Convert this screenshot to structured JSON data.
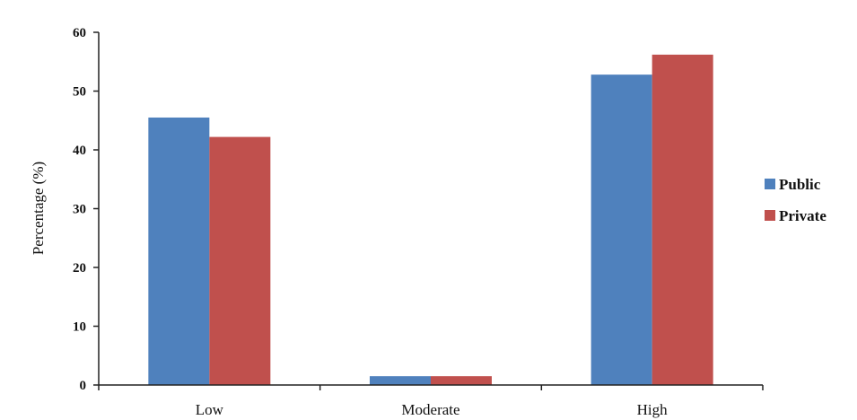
{
  "chart_data": {
    "type": "bar",
    "title": "",
    "xlabel": "",
    "ylabel": "Percentage (%)",
    "categories": [
      "Low",
      "Moderate",
      "High"
    ],
    "series": [
      {
        "name": "Public",
        "values": [
          45.5,
          1.5,
          52.8
        ],
        "color": "#4f81bd"
      },
      {
        "name": "Private",
        "values": [
          42.2,
          1.5,
          56.2
        ],
        "color": "#c0504d"
      }
    ],
    "ylim": [
      0,
      60
    ],
    "yticks": [
      0,
      10,
      20,
      30,
      40,
      50,
      60
    ],
    "grid": false,
    "legend": "right"
  }
}
